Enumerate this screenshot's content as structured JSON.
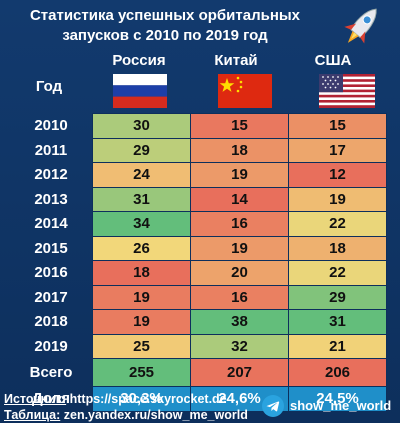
{
  "title_line1": "Статистика успешных орбитальных",
  "title_line2": "запусков с 2010 по 2019 год",
  "header": {
    "year": "Год",
    "countries": [
      "Россия",
      "Китай",
      "США"
    ]
  },
  "row_total_label": "Всего",
  "row_share_label": "Доля",
  "footer": {
    "source_label": "Источник:",
    "source_value": "https://space.skyrocket.de",
    "table_label": "Таблица:",
    "table_value": "zen.yandex.ru/show_me_world",
    "channel": "show_me_world"
  },
  "colors": {
    "bg": "#0d2f5c",
    "share": "#1f8fc9",
    "low": "#e86f5c",
    "mid": "#f2d77a",
    "high": "#63be7b"
  },
  "chart_data": {
    "type": "table",
    "columns": [
      "Год",
      "Россия",
      "Китай",
      "США"
    ],
    "rows": [
      {
        "year": "2010",
        "values": [
          30,
          15,
          15
        ]
      },
      {
        "year": "2011",
        "values": [
          29,
          18,
          17
        ]
      },
      {
        "year": "2012",
        "values": [
          24,
          19,
          12
        ]
      },
      {
        "year": "2013",
        "values": [
          31,
          14,
          19
        ]
      },
      {
        "year": "2014",
        "values": [
          34,
          16,
          22
        ]
      },
      {
        "year": "2015",
        "values": [
          26,
          19,
          18
        ]
      },
      {
        "year": "2016",
        "values": [
          18,
          20,
          22
        ]
      },
      {
        "year": "2017",
        "values": [
          19,
          16,
          29
        ]
      },
      {
        "year": "2018",
        "values": [
          19,
          38,
          31
        ]
      },
      {
        "year": "2019",
        "values": [
          25,
          32,
          21
        ]
      }
    ],
    "totals": [
      "255",
      "207",
      "206"
    ],
    "shares": [
      "30,3%",
      "24,6%",
      "24,5%"
    ]
  }
}
